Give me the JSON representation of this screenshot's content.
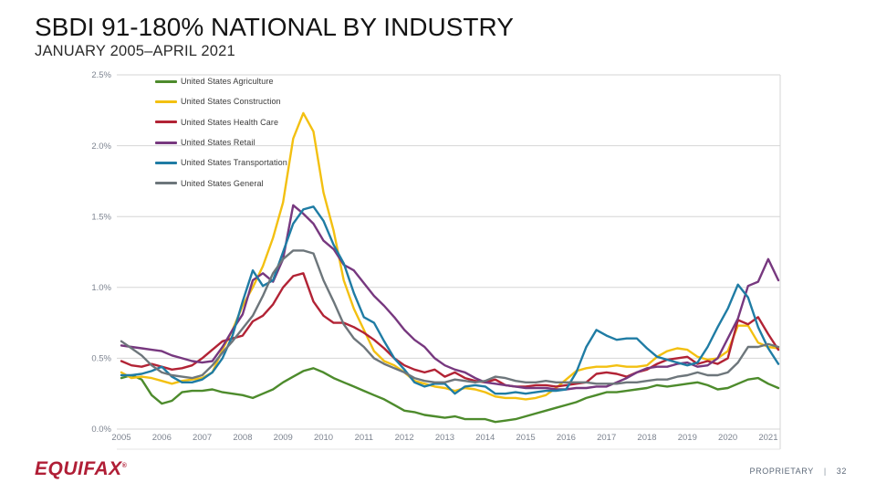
{
  "slide": {
    "title": "SBDI 91-180% NATIONAL BY INDUSTRY",
    "subtitle": "JANUARY 2005–APRIL 2021",
    "footer": {
      "brand": "EQUIFAX",
      "trademark": "®",
      "classification": "PROPRIETARY",
      "separator": "|",
      "page_number": "32"
    }
  },
  "colors": {
    "grid": "#d6d6d6",
    "axis_text": "#7d8490",
    "right_border": "#d6d6d6",
    "baseline_lower": "#e4e4e4"
  },
  "chart_data": {
    "type": "line",
    "title": "SBDI 91-180% National by Industry",
    "xlabel": "",
    "ylabel": "",
    "unit": "%",
    "grid": "horizontal",
    "legend_position": "top-left-inside",
    "xlim": [
      2005.0,
      2021.25
    ],
    "ylim": [
      0,
      2.5
    ],
    "y_ticks": [
      0.0,
      0.5,
      1.0,
      1.5,
      2.0,
      2.5
    ],
    "y_tick_labels": [
      "0.0%",
      "0.5%",
      "1.0%",
      "1.5%",
      "2.0%",
      "2.5%"
    ],
    "x_ticks": [
      2005,
      2006,
      2007,
      2008,
      2009,
      2010,
      2011,
      2012,
      2013,
      2014,
      2015,
      2016,
      2017,
      2018,
      2019,
      2020,
      2021
    ],
    "x_tick_labels": [
      "2005",
      "2006",
      "2007",
      "2008",
      "2009",
      "2010",
      "2011",
      "2012",
      "2013",
      "2014",
      "2015",
      "2016",
      "2017",
      "2018",
      "2019",
      "2020",
      "2021"
    ],
    "x": [
      2005.0,
      2005.25,
      2005.5,
      2005.75,
      2006.0,
      2006.25,
      2006.5,
      2006.75,
      2007.0,
      2007.25,
      2007.5,
      2007.75,
      2008.0,
      2008.25,
      2008.5,
      2008.75,
      2009.0,
      2009.25,
      2009.5,
      2009.75,
      2010.0,
      2010.25,
      2010.5,
      2010.75,
      2011.0,
      2011.25,
      2011.5,
      2011.75,
      2012.0,
      2012.25,
      2012.5,
      2012.75,
      2013.0,
      2013.25,
      2013.5,
      2013.75,
      2014.0,
      2014.25,
      2014.5,
      2014.75,
      2015.0,
      2015.25,
      2015.5,
      2015.75,
      2016.0,
      2016.25,
      2016.5,
      2016.75,
      2017.0,
      2017.25,
      2017.5,
      2017.75,
      2018.0,
      2018.25,
      2018.5,
      2018.75,
      2019.0,
      2019.25,
      2019.5,
      2019.75,
      2020.0,
      2020.25,
      2020.5,
      2020.75,
      2021.0,
      2021.25
    ],
    "series": [
      {
        "id": "agriculture",
        "name": "United States Agriculture",
        "color": "#4d8b2c",
        "values": [
          0.36,
          0.38,
          0.35,
          0.24,
          0.18,
          0.2,
          0.26,
          0.27,
          0.27,
          0.28,
          0.26,
          0.25,
          0.24,
          0.22,
          0.25,
          0.28,
          0.33,
          0.37,
          0.41,
          0.43,
          0.4,
          0.36,
          0.33,
          0.3,
          0.27,
          0.24,
          0.21,
          0.17,
          0.13,
          0.12,
          0.1,
          0.09,
          0.08,
          0.09,
          0.07,
          0.07,
          0.07,
          0.05,
          0.06,
          0.07,
          0.09,
          0.11,
          0.13,
          0.15,
          0.17,
          0.19,
          0.22,
          0.24,
          0.26,
          0.26,
          0.27,
          0.28,
          0.29,
          0.31,
          0.3,
          0.31,
          0.32,
          0.33,
          0.31,
          0.28,
          0.29,
          0.32,
          0.35,
          0.36,
          0.32,
          0.29
        ]
      },
      {
        "id": "construction",
        "name": "United States Construction",
        "color": "#f3c011",
        "values": [
          0.4,
          0.36,
          0.37,
          0.36,
          0.34,
          0.32,
          0.34,
          0.35,
          0.36,
          0.4,
          0.56,
          0.7,
          0.87,
          1.0,
          1.15,
          1.35,
          1.6,
          2.05,
          2.23,
          2.1,
          1.67,
          1.4,
          1.05,
          0.85,
          0.7,
          0.55,
          0.48,
          0.45,
          0.4,
          0.34,
          0.32,
          0.3,
          0.29,
          0.27,
          0.29,
          0.28,
          0.26,
          0.23,
          0.22,
          0.22,
          0.21,
          0.22,
          0.24,
          0.29,
          0.35,
          0.41,
          0.43,
          0.44,
          0.44,
          0.45,
          0.44,
          0.44,
          0.45,
          0.51,
          0.55,
          0.57,
          0.56,
          0.51,
          0.49,
          0.5,
          0.55,
          0.73,
          0.73,
          0.61,
          0.58,
          0.57
        ]
      },
      {
        "id": "health-care",
        "name": "United States Health Care",
        "color": "#b22335",
        "values": [
          0.48,
          0.45,
          0.44,
          0.46,
          0.44,
          0.42,
          0.43,
          0.45,
          0.5,
          0.56,
          0.62,
          0.64,
          0.66,
          0.76,
          0.8,
          0.88,
          1.0,
          1.08,
          1.1,
          0.9,
          0.8,
          0.75,
          0.75,
          0.72,
          0.68,
          0.63,
          0.57,
          0.5,
          0.45,
          0.42,
          0.4,
          0.42,
          0.37,
          0.4,
          0.36,
          0.34,
          0.33,
          0.35,
          0.31,
          0.3,
          0.3,
          0.31,
          0.31,
          0.3,
          0.31,
          0.32,
          0.33,
          0.39,
          0.4,
          0.39,
          0.37,
          0.4,
          0.42,
          0.46,
          0.49,
          0.5,
          0.51,
          0.46,
          0.48,
          0.46,
          0.5,
          0.77,
          0.74,
          0.79,
          0.67,
          0.56
        ]
      },
      {
        "id": "retail",
        "name": "United States Retail",
        "color": "#77387f",
        "values": [
          0.59,
          0.58,
          0.57,
          0.56,
          0.55,
          0.52,
          0.5,
          0.48,
          0.47,
          0.48,
          0.58,
          0.7,
          0.81,
          1.05,
          1.1,
          1.04,
          1.2,
          1.58,
          1.52,
          1.45,
          1.33,
          1.27,
          1.16,
          1.12,
          1.03,
          0.94,
          0.87,
          0.79,
          0.7,
          0.63,
          0.58,
          0.5,
          0.45,
          0.42,
          0.4,
          0.36,
          0.33,
          0.32,
          0.31,
          0.3,
          0.29,
          0.29,
          0.29,
          0.28,
          0.28,
          0.29,
          0.29,
          0.3,
          0.3,
          0.33,
          0.36,
          0.4,
          0.43,
          0.44,
          0.44,
          0.46,
          0.47,
          0.44,
          0.45,
          0.5,
          0.64,
          0.78,
          1.01,
          1.04,
          1.2,
          1.05
        ]
      },
      {
        "id": "transportation",
        "name": "United States Transportation",
        "color": "#1f7ca4",
        "values": [
          0.38,
          0.38,
          0.39,
          0.41,
          0.44,
          0.37,
          0.33,
          0.33,
          0.35,
          0.4,
          0.5,
          0.66,
          0.9,
          1.12,
          1.01,
          1.05,
          1.25,
          1.45,
          1.55,
          1.57,
          1.47,
          1.3,
          1.17,
          0.96,
          0.79,
          0.75,
          0.62,
          0.5,
          0.42,
          0.33,
          0.3,
          0.32,
          0.32,
          0.25,
          0.3,
          0.31,
          0.3,
          0.25,
          0.25,
          0.26,
          0.25,
          0.26,
          0.27,
          0.27,
          0.28,
          0.4,
          0.58,
          0.7,
          0.66,
          0.63,
          0.64,
          0.64,
          0.57,
          0.51,
          0.49,
          0.47,
          0.45,
          0.47,
          0.58,
          0.72,
          0.85,
          1.02,
          0.93,
          0.72,
          0.57,
          0.46
        ]
      },
      {
        "id": "general",
        "name": "United States General",
        "color": "#6d767b",
        "values": [
          0.62,
          0.57,
          0.52,
          0.45,
          0.4,
          0.38,
          0.37,
          0.36,
          0.38,
          0.45,
          0.54,
          0.62,
          0.71,
          0.8,
          0.94,
          1.1,
          1.2,
          1.26,
          1.26,
          1.24,
          1.05,
          0.9,
          0.74,
          0.64,
          0.58,
          0.5,
          0.46,
          0.43,
          0.4,
          0.36,
          0.34,
          0.33,
          0.33,
          0.35,
          0.34,
          0.33,
          0.34,
          0.37,
          0.36,
          0.34,
          0.33,
          0.33,
          0.34,
          0.33,
          0.33,
          0.33,
          0.33,
          0.32,
          0.32,
          0.32,
          0.33,
          0.33,
          0.34,
          0.35,
          0.35,
          0.37,
          0.38,
          0.4,
          0.38,
          0.38,
          0.4,
          0.47,
          0.58,
          0.58,
          0.6,
          0.58
        ]
      }
    ]
  }
}
